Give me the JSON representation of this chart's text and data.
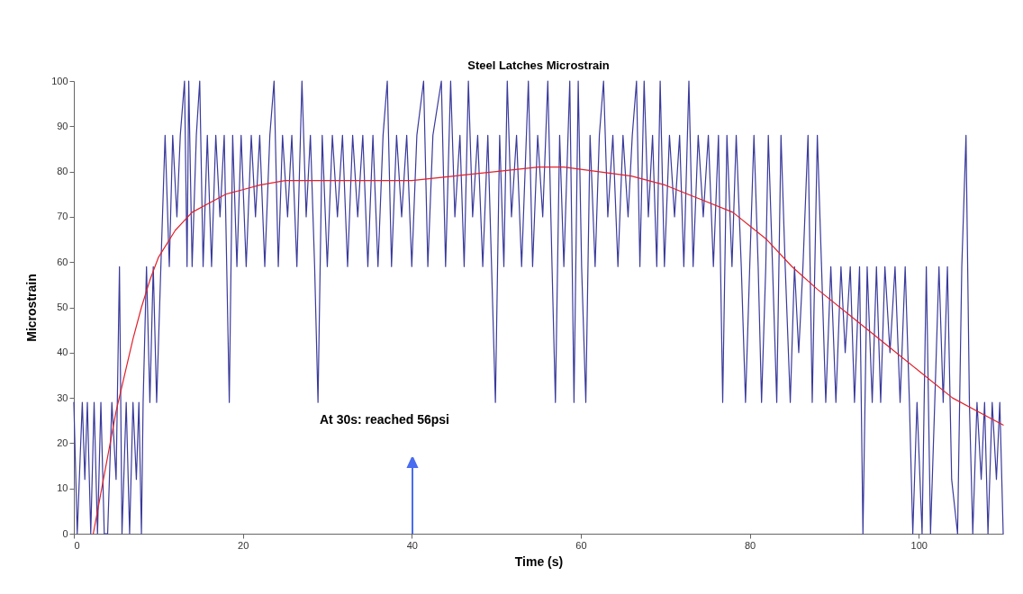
{
  "chart_data": {
    "type": "line",
    "title": "Steel Latches Microstrain",
    "xlabel": "Time (s)",
    "ylabel": "Microstrain",
    "xlim": [
      0,
      110
    ],
    "xticks": [
      0,
      20,
      40,
      60,
      80,
      100
    ],
    "ylim": [
      0,
      100
    ],
    "yticks": [
      0,
      10,
      20,
      30,
      40,
      50,
      60,
      70,
      80,
      90,
      100
    ],
    "grid": false,
    "legend": false,
    "marker": "none",
    "line_style": "solid",
    "annotations": [
      "At 30s: reached 56psi"
    ],
    "series": [
      {
        "color": "#3a3a9c",
        "x": [
          0,
          0.4,
          1,
          1.3,
          1.6,
          2,
          2.4,
          2.8,
          3.2,
          3.6,
          4,
          4.5,
          5,
          5.4,
          5.7,
          6.2,
          6.6,
          7,
          7.4,
          7.7,
          8,
          8.2,
          8.6,
          9,
          9.4,
          9.8,
          10.3,
          10.8,
          11.3,
          11.7,
          12.2,
          12.6,
          13.1,
          13.4,
          13.6,
          14,
          14.5,
          14.9,
          15.3,
          15.8,
          16.3,
          16.8,
          17.3,
          17.8,
          18.4,
          18.8,
          19.3,
          19.8,
          20.4,
          21,
          21.5,
          22,
          22.6,
          23.2,
          23.7,
          24.2,
          24.7,
          25.3,
          25.8,
          26.4,
          27,
          27.5,
          28,
          28.5,
          28.9,
          29.4,
          30,
          30.6,
          31.2,
          31.8,
          32.4,
          33,
          33.6,
          34.2,
          34.8,
          35.4,
          36,
          36.6,
          37.1,
          37.6,
          38.2,
          38.8,
          39.4,
          40,
          40.6,
          41.4,
          41.9,
          42.5,
          43.5,
          44,
          44.6,
          45.1,
          45.7,
          46.2,
          46.7,
          47.2,
          47.8,
          48.4,
          49,
          49.9,
          50.4,
          50.9,
          51.3,
          51.8,
          52.4,
          53,
          53.8,
          54.3,
          54.9,
          55.5,
          56.1,
          56.6,
          57,
          57.5,
          58,
          58.7,
          59.2,
          59.7,
          60.1,
          60.6,
          61.1,
          61.7,
          62.2,
          62.7,
          63.2,
          63.8,
          64.4,
          65,
          65.6,
          66.1,
          66.6,
          67,
          67.5,
          68,
          68.5,
          69,
          69.4,
          69.9,
          70.5,
          71.1,
          71.7,
          72.2,
          72.8,
          73.3,
          73.9,
          74.5,
          75.1,
          75.7,
          76.3,
          76.8,
          77.3,
          77.9,
          78.4,
          79,
          79.5,
          80,
          80.5,
          81,
          81.4,
          81.9,
          82.2,
          82.7,
          83.2,
          83.7,
          84.2,
          84.8,
          85.3,
          85.8,
          86.3,
          86.9,
          87.4,
          88,
          88.5,
          89,
          89.6,
          90.2,
          90.8,
          91.3,
          91.9,
          92.4,
          93,
          93.4,
          93.9,
          94.5,
          95,
          95.5,
          96,
          96.6,
          97.2,
          97.8,
          98.4,
          98.9,
          99.3,
          99.8,
          100.4,
          100.9,
          101.4,
          101.9,
          102.4,
          102.9,
          103.4,
          103.9,
          104.6,
          105.1,
          105.6,
          106,
          106.4,
          106.9,
          107.4,
          107.8,
          108.2,
          108.7,
          109.2,
          109.6,
          110
        ],
        "values": [
          29,
          0,
          29,
          12,
          29,
          0,
          29,
          0,
          29,
          0,
          0,
          29,
          12,
          59,
          0,
          29,
          0,
          29,
          12,
          29,
          0,
          29,
          59,
          29,
          59,
          29,
          59,
          88,
          59,
          88,
          70,
          88,
          100,
          59,
          100,
          59,
          88,
          100,
          59,
          88,
          59,
          88,
          70,
          88,
          29,
          88,
          59,
          88,
          59,
          88,
          70,
          88,
          59,
          88,
          100,
          59,
          88,
          70,
          88,
          59,
          100,
          70,
          88,
          59,
          29,
          88,
          59,
          88,
          70,
          88,
          59,
          88,
          70,
          88,
          59,
          88,
          59,
          88,
          100,
          59,
          88,
          70,
          88,
          59,
          88,
          100,
          59,
          88,
          100,
          59,
          100,
          70,
          88,
          59,
          100,
          70,
          88,
          59,
          88,
          29,
          88,
          59,
          100,
          70,
          88,
          59,
          100,
          59,
          88,
          70,
          100,
          59,
          29,
          88,
          59,
          100,
          29,
          100,
          59,
          29,
          88,
          59,
          88,
          100,
          70,
          88,
          59,
          88,
          70,
          88,
          100,
          59,
          100,
          70,
          88,
          59,
          100,
          59,
          88,
          70,
          88,
          59,
          100,
          59,
          88,
          70,
          88,
          59,
          88,
          29,
          88,
          59,
          88,
          59,
          29,
          59,
          88,
          59,
          29,
          59,
          88,
          59,
          29,
          88,
          59,
          29,
          59,
          40,
          59,
          88,
          29,
          88,
          59,
          29,
          59,
          29,
          59,
          40,
          59,
          29,
          59,
          0,
          59,
          29,
          59,
          29,
          59,
          40,
          59,
          29,
          59,
          29,
          0,
          29,
          0,
          59,
          0,
          29,
          59,
          29,
          59,
          12,
          0,
          59,
          88,
          29,
          0,
          29,
          12,
          29,
          0,
          29,
          12,
          29,
          0
        ]
      },
      {
        "color": "#e3202a",
        "x": [
          2.3,
          3,
          4,
          5,
          6,
          7,
          8,
          9,
          10,
          12,
          14,
          16,
          18,
          20,
          22,
          25,
          30,
          35,
          40,
          45,
          50,
          55,
          58,
          62,
          66,
          70,
          74,
          78,
          80,
          82,
          85,
          88,
          92,
          96,
          100,
          104,
          107,
          110
        ],
        "values": [
          0,
          7,
          17,
          27,
          35,
          43,
          50,
          56,
          61,
          67,
          71,
          73,
          75,
          76,
          77,
          78,
          78,
          78,
          78,
          79,
          80,
          81,
          81,
          80,
          79,
          77,
          74,
          71,
          68,
          65,
          59,
          54,
          48,
          42,
          36,
          30,
          27,
          24
        ]
      }
    ]
  }
}
